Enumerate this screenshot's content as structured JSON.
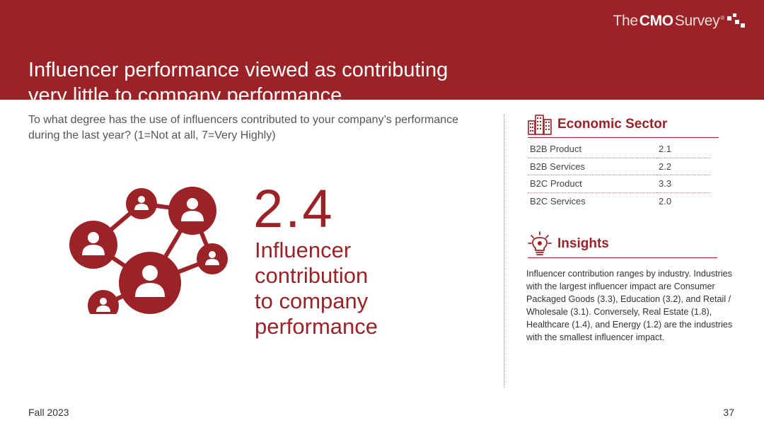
{
  "header": {
    "brand_prefix": "The",
    "brand_bold": "CMO",
    "brand_suffix": "Survey",
    "brand_mark": "®",
    "title_lines": [
      "Influencer performance viewed as contributing",
      "very little to company performance"
    ]
  },
  "question": "To what degree has the use of influencers contributed to your company’s performance during the last year? (1=Not at all, 7=Very Highly)",
  "highlight": {
    "value": "2.4",
    "label_lines": [
      "Influencer",
      "contribution",
      "to company",
      "performance"
    ],
    "icon": "influencer-network-icon"
  },
  "economic_sector": {
    "heading": "Economic Sector",
    "icon": "buildings-icon",
    "rows": [
      {
        "sector": "B2B Product",
        "value": "2.1"
      },
      {
        "sector": "B2B Services",
        "value": "2.2"
      },
      {
        "sector": "B2C Product",
        "value": "3.3"
      },
      {
        "sector": "B2C Services",
        "value": "2.0"
      }
    ]
  },
  "insights": {
    "heading": "Insights",
    "icon": "lightbulb-icon",
    "text": "Influencer contribution ranges by industry. Industries with the largest influencer impact are Consumer Packaged Goods (3.3), Education (3.2), and Retail / Wholesale (3.1). Conversely, Real Estate (1.8), Healthcare (1.4), and Energy (1.2) are the industries with the smallest influencer impact."
  },
  "footer": {
    "date": "Fall 2023",
    "page_number": "37"
  },
  "colors": {
    "accent": "#9b2226",
    "text": "#444444"
  }
}
